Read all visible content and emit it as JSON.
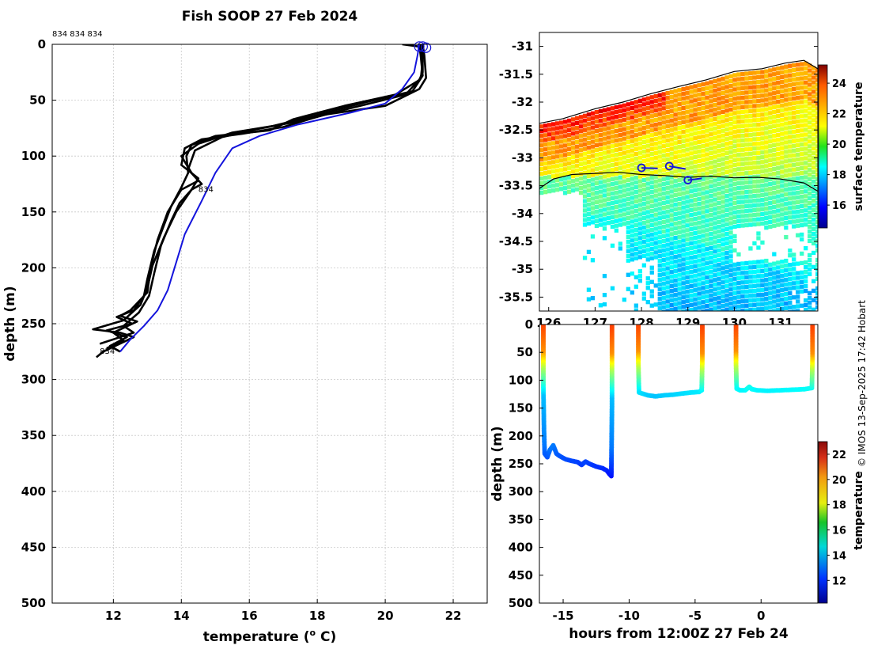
{
  "figure_title": "Fish SOOP 27 Feb 2024",
  "credit": "© IMOS 13-Sep-2025 17:42 Hobart",
  "profile_labels_top": "834 834 834",
  "chart_data": [
    {
      "id": "profiles",
      "type": "line",
      "xlabel": "temperature (",
      "xlabel_sup": "o",
      "xlabel_tail": " C)",
      "ylabel": "depth (m)",
      "xlim": [
        10.2,
        23.0
      ],
      "ylim": [
        500,
        0
      ],
      "xticks": [
        12,
        14,
        16,
        18,
        20,
        22
      ],
      "yticks": [
        0,
        50,
        100,
        150,
        200,
        250,
        300,
        350,
        400,
        450,
        500
      ],
      "grid": true,
      "series": [
        {
          "name": "profile 1",
          "color": "#000000",
          "points": [
            [
              20.5,
              0
            ],
            [
              21.0,
              2
            ],
            [
              21.1,
              8
            ],
            [
              21.1,
              25
            ],
            [
              21.0,
              32
            ],
            [
              20.3,
              45
            ],
            [
              18.8,
              55
            ],
            [
              17.3,
              67
            ],
            [
              16.6,
              77
            ],
            [
              15.0,
              82
            ],
            [
              14.3,
              90
            ],
            [
              14.15,
              100
            ],
            [
              14.2,
              115
            ],
            [
              14.0,
              128
            ],
            [
              13.7,
              145
            ],
            [
              13.45,
              165
            ],
            [
              13.2,
              185
            ],
            [
              13.0,
              210
            ],
            [
              12.9,
              225
            ],
            [
              12.6,
              238
            ],
            [
              12.1,
              244
            ],
            [
              12.55,
              250
            ],
            [
              11.8,
              256
            ],
            [
              12.4,
              262
            ],
            [
              11.9,
              270
            ],
            [
              12.2,
              275
            ]
          ]
        },
        {
          "name": "profile 2",
          "color": "#000000",
          "points": [
            [
              21.1,
              0
            ],
            [
              21.15,
              10
            ],
            [
              21.2,
              30
            ],
            [
              21.0,
              40
            ],
            [
              20.0,
              55
            ],
            [
              18.2,
              63
            ],
            [
              17.0,
              74
            ],
            [
              15.8,
              80
            ],
            [
              14.6,
              85
            ],
            [
              14.1,
              93
            ],
            [
              14.0,
              108
            ],
            [
              14.5,
              120
            ],
            [
              14.3,
              130
            ],
            [
              13.85,
              150
            ],
            [
              13.5,
              172
            ],
            [
              13.15,
              198
            ],
            [
              13.0,
              218
            ],
            [
              12.8,
              233
            ],
            [
              12.3,
              247
            ],
            [
              11.4,
              255
            ],
            [
              12.2,
              258
            ],
            [
              12.6,
              262
            ],
            [
              11.7,
              275
            ],
            [
              11.5,
              280
            ]
          ]
        },
        {
          "name": "profile 3",
          "color": "#000000",
          "points": [
            [
              21.0,
              0
            ],
            [
              21.05,
              12
            ],
            [
              21.1,
              28
            ],
            [
              20.8,
              42
            ],
            [
              19.4,
              52
            ],
            [
              17.9,
              64
            ],
            [
              16.7,
              73
            ],
            [
              15.5,
              79
            ],
            [
              14.5,
              89
            ],
            [
              14.0,
              100
            ],
            [
              14.3,
              115
            ],
            [
              14.6,
              125
            ],
            [
              14.3,
              130
            ],
            [
              13.95,
              142
            ],
            [
              13.7,
              158
            ],
            [
              13.4,
              180
            ],
            [
              13.2,
              205
            ],
            [
              13.05,
              225
            ],
            [
              12.75,
              240
            ],
            [
              12.3,
              252
            ],
            [
              12.6,
              258
            ],
            [
              11.6,
              268
            ]
          ]
        },
        {
          "name": "profile 4",
          "color": "#000000",
          "points": [
            [
              21.05,
              0
            ],
            [
              21.1,
              15
            ],
            [
              21.05,
              30
            ],
            [
              20.6,
              45
            ],
            [
              19.0,
              57
            ],
            [
              17.6,
              68
            ],
            [
              16.2,
              76
            ],
            [
              15.2,
              83
            ],
            [
              14.4,
              95
            ],
            [
              14.2,
              112
            ],
            [
              14.5,
              122
            ],
            [
              14.0,
              130
            ],
            [
              13.6,
              150
            ],
            [
              13.3,
              175
            ],
            [
              13.1,
              200
            ],
            [
              13.0,
              222
            ],
            [
              12.5,
              238
            ],
            [
              12.2,
              243
            ],
            [
              12.7,
              248
            ],
            [
              12.0,
              258
            ],
            [
              12.3,
              265
            ],
            [
              11.8,
              272
            ]
          ]
        },
        {
          "name": "model",
          "color": "#1414dc",
          "points": [
            [
              21.0,
              0
            ],
            [
              20.95,
              10
            ],
            [
              20.85,
              25
            ],
            [
              20.5,
              40
            ],
            [
              20.0,
              53
            ],
            [
              19.0,
              61
            ],
            [
              17.4,
              72
            ],
            [
              16.3,
              82
            ],
            [
              15.5,
              93
            ],
            [
              15.0,
              115
            ],
            [
              14.6,
              140
            ],
            [
              14.1,
              170
            ],
            [
              13.8,
              200
            ],
            [
              13.6,
              220
            ],
            [
              13.3,
              238
            ],
            [
              12.9,
              252
            ],
            [
              12.5,
              264
            ],
            [
              12.2,
              275
            ]
          ]
        }
      ],
      "markers": [
        {
          "x": 21.0,
          "y": 2
        },
        {
          "x": 21.1,
          "y": 2
        },
        {
          "x": 21.2,
          "y": 3
        }
      ],
      "annotations": [
        {
          "text": "834",
          "x": 14.5,
          "y": 132
        },
        {
          "text": "834",
          "x": 11.6,
          "y": 277
        }
      ]
    },
    {
      "id": "sst_map",
      "type": "heatmap",
      "ylim": [
        -35.75,
        -30.75
      ],
      "xlim": [
        125.8,
        131.8
      ],
      "yticks": [
        -31,
        -31.5,
        -32,
        -32.5,
        -33,
        -33.5,
        -34,
        -34.5,
        -35,
        -35.5
      ],
      "ytick_labels": [
        "-31",
        "-31.5",
        "-32",
        "-32.5",
        "-33",
        "-33.5",
        "-34",
        "-34.5",
        "-35",
        "-35.5"
      ],
      "xticks": [
        126,
        127,
        128,
        129,
        130,
        131
      ],
      "xtick_labels": [
        "126",
        "127",
        "128",
        "129",
        "130",
        "131"
      ],
      "colorbar_label": "surface temperature",
      "colorbar_ticks": [
        16,
        18,
        20,
        22,
        24
      ],
      "colorbar_range": [
        14.5,
        25.2
      ],
      "track": [
        {
          "lon": 128.0,
          "lat": -33.18
        },
        {
          "lon": 128.35,
          "lat": -33.19
        },
        {
          "lon": 128.6,
          "lat": -33.15
        },
        {
          "lon": 128.95,
          "lat": -33.2
        },
        {
          "lon": 129.0,
          "lat": -33.4
        },
        {
          "lon": 129.3,
          "lat": -33.37
        }
      ],
      "track_circles": [
        {
          "lon": 128.0,
          "lat": -33.18
        },
        {
          "lon": 128.6,
          "lat": -33.15
        },
        {
          "lon": 129.0,
          "lat": -33.4
        }
      ],
      "coastline": [
        [
          125.8,
          -32.38
        ],
        [
          126.3,
          -32.3
        ],
        [
          127.0,
          -32.12
        ],
        [
          127.6,
          -32.0
        ],
        [
          128.2,
          -31.85
        ],
        [
          128.8,
          -31.72
        ],
        [
          129.4,
          -31.6
        ],
        [
          130.0,
          -31.45
        ],
        [
          130.6,
          -31.4
        ],
        [
          131.1,
          -31.3
        ],
        [
          131.5,
          -31.25
        ],
        [
          131.8,
          -31.4
        ]
      ],
      "shelf_edge": [
        [
          125.8,
          -33.55
        ],
        [
          126.1,
          -33.38
        ],
        [
          126.5,
          -33.3
        ],
        [
          127.0,
          -33.28
        ],
        [
          127.5,
          -33.26
        ],
        [
          128.0,
          -33.3
        ],
        [
          128.5,
          -33.32
        ],
        [
          129.0,
          -33.35
        ],
        [
          129.5,
          -33.33
        ],
        [
          130.0,
          -33.36
        ],
        [
          130.5,
          -33.35
        ],
        [
          131.0,
          -33.38
        ],
        [
          131.5,
          -33.45
        ],
        [
          131.8,
          -33.6
        ]
      ]
    },
    {
      "id": "depth_time",
      "type": "scatter",
      "xlabel": "hours from 12:00Z 27 Feb 24",
      "ylabel": "depth (m)",
      "xlim": [
        -16.8,
        4.3
      ],
      "ylim": [
        500,
        0
      ],
      "xticks": [
        -15,
        -10,
        -5,
        0
      ],
      "xtick_labels": [
        "-15",
        "-10",
        "-5",
        "0"
      ],
      "yticks": [
        0,
        50,
        100,
        150,
        200,
        250,
        300,
        350,
        400,
        450,
        500
      ],
      "colorbar_label": "temperature",
      "colorbar_ticks": [
        12,
        14,
        16,
        18,
        20,
        22
      ],
      "colorbar_range": [
        10.2,
        23.0
      ],
      "segments": [
        [
          [
            -16.5,
            0
          ],
          [
            -16.5,
            110
          ],
          [
            -16.45,
            190
          ],
          [
            -16.4,
            232
          ],
          [
            -16.2,
            238
          ],
          [
            -16.0,
            225
          ],
          [
            -15.75,
            217
          ],
          [
            -15.5,
            232
          ],
          [
            -15.2,
            237
          ],
          [
            -14.8,
            242
          ],
          [
            -14.3,
            245
          ],
          [
            -13.9,
            247
          ],
          [
            -13.6,
            252
          ],
          [
            -13.3,
            246
          ],
          [
            -13.0,
            250
          ],
          [
            -12.5,
            255
          ],
          [
            -12.0,
            258
          ],
          [
            -11.7,
            262
          ],
          [
            -11.5,
            268
          ],
          [
            -11.35,
            272
          ],
          [
            -11.3,
            150
          ],
          [
            -11.3,
            0
          ]
        ],
        [
          [
            -9.3,
            0
          ],
          [
            -9.3,
            70
          ],
          [
            -9.25,
            122
          ],
          [
            -8.6,
            127
          ],
          [
            -8.0,
            129
          ],
          [
            -7.3,
            127
          ],
          [
            -6.7,
            126
          ],
          [
            -6.0,
            124
          ],
          [
            -5.3,
            122
          ],
          [
            -4.7,
            121
          ],
          [
            -4.5,
            118
          ],
          [
            -4.45,
            60
          ],
          [
            -4.45,
            0
          ]
        ],
        [
          [
            -1.9,
            0
          ],
          [
            -1.9,
            70
          ],
          [
            -1.85,
            115
          ],
          [
            -1.6,
            118
          ],
          [
            -1.2,
            118
          ],
          [
            -0.9,
            112
          ],
          [
            -0.7,
            116
          ],
          [
            -0.3,
            118
          ],
          [
            0.5,
            119
          ],
          [
            1.5,
            118
          ],
          [
            2.5,
            117
          ],
          [
            3.3,
            116
          ],
          [
            3.85,
            114
          ],
          [
            3.9,
            60
          ],
          [
            3.9,
            0
          ]
        ]
      ]
    }
  ]
}
